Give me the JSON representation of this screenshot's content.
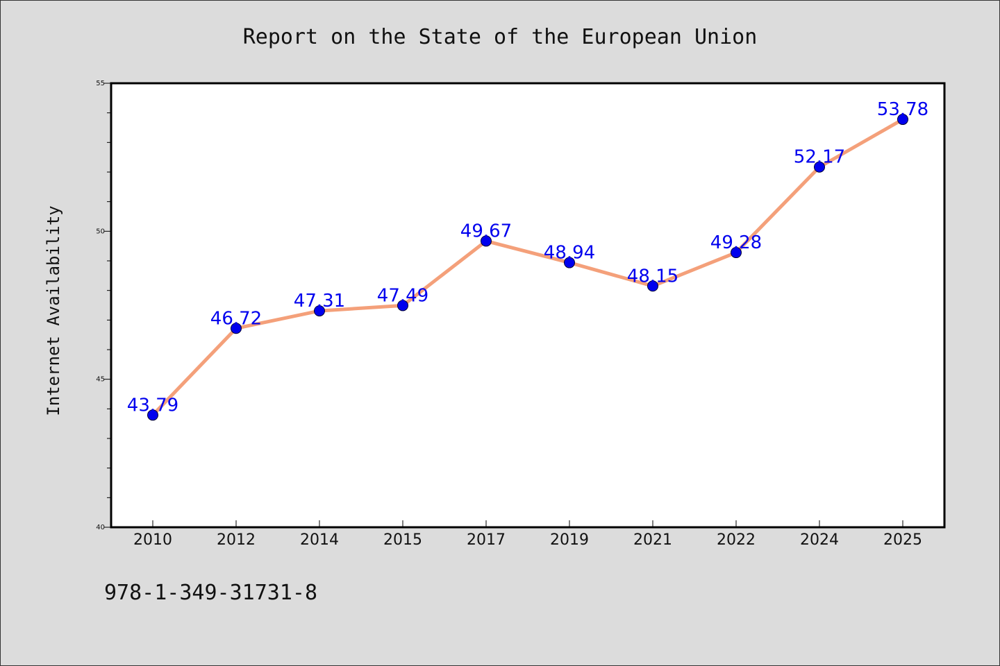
{
  "chart_data": {
    "type": "line",
    "title": "Report on the State of the European Union",
    "xlabel": "",
    "ylabel": "Internet Availability",
    "categories": [
      "2010",
      "2012",
      "2014",
      "2015",
      "2017",
      "2019",
      "2021",
      "2022",
      "2024",
      "2025"
    ],
    "series": [
      {
        "values": [
          43.79,
          46.72,
          47.31,
          47.49,
          49.67,
          48.94,
          48.15,
          49.28,
          52.17,
          53.78
        ]
      }
    ],
    "data_labels": [
      "43.79",
      "46.72",
      "47.31",
      "47.49",
      "49.67",
      "48.94",
      "48.15",
      "49.28",
      "52.17",
      "53.78"
    ],
    "ylim": [
      40,
      55
    ],
    "yticks": [
      40,
      45,
      50,
      55
    ],
    "yminor_step": 1,
    "grid": false,
    "legend": "none"
  },
  "footnote": "978-1-349-31731-8",
  "colors": {
    "background": "#dcdcdc",
    "plot_background": "#ffffff",
    "line": "#f4a07a",
    "marker": "#0000ee",
    "data_label": "#0000ee",
    "axis": "#000000"
  }
}
